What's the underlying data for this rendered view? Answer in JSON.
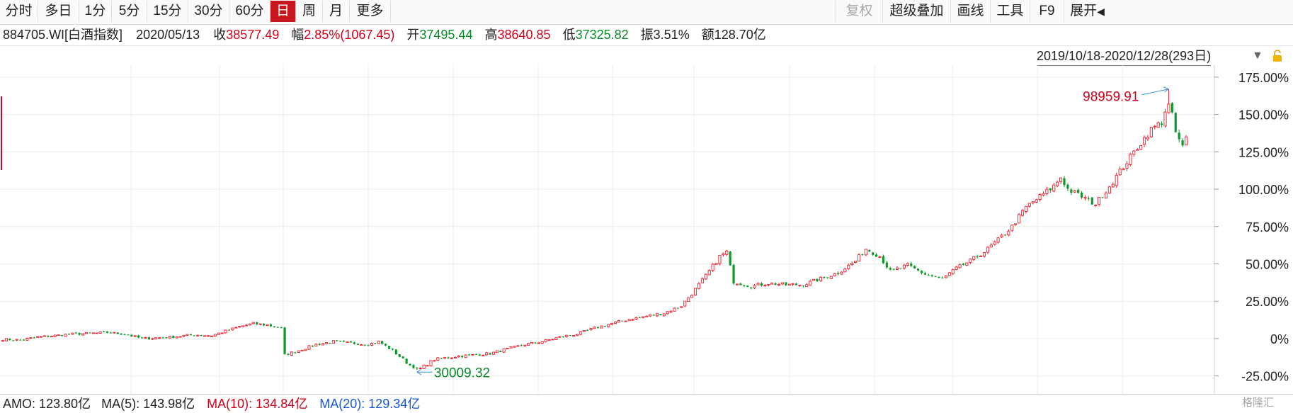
{
  "toolbar": {
    "tabs": [
      "分时",
      "多日",
      "1分",
      "5分",
      "15分",
      "30分",
      "60分",
      "日",
      "周",
      "月",
      "更多"
    ],
    "active_index": 7,
    "right": {
      "restore": "复权",
      "overlay": "超级叠加",
      "draw": "画线",
      "tools": "工具",
      "f9": "F9",
      "expand": "展开",
      "expand_arrow": "◀"
    }
  },
  "info": {
    "code": "884705.WI[白酒指数]",
    "date": "2020/05/13",
    "close_label": "收",
    "close": "38577.49",
    "change_label": "幅",
    "change": "2.85%(1067.45)",
    "open_label": "开",
    "open": "37495.44",
    "high_label": "高",
    "high": "38640.85",
    "low_label": "低",
    "low": "37325.82",
    "amplitude_label": "振",
    "amplitude": "3.51%",
    "amount_label": "额",
    "amount": "128.70亿"
  },
  "range": {
    "text": "2019/10/18-2020/12/28(293日)",
    "arrow": "▼"
  },
  "chart_data": {
    "type": "candlestick",
    "y_unit": "percent change",
    "yticks": [
      "175.00%",
      "150.00%",
      "125.00%",
      "100.00%",
      "75.00%",
      "50.00%",
      "25.00%",
      "0%",
      "-25.00%"
    ],
    "ylim": [
      -37,
      183
    ],
    "x_start": "2019/10/18",
    "x_end": "2020/12/28",
    "trading_days": 293,
    "max_annotation": "98959.91",
    "min_annotation": "30009.32",
    "grid": true,
    "colors": {
      "up": "#e8212e",
      "down": "#0b9a2b",
      "max_label": "#d0021b",
      "min_label": "#078a28",
      "arrow": "#3d8fd1"
    },
    "waypoints": [
      [
        0,
        -0.5
      ],
      [
        5,
        -1
      ],
      [
        10,
        1
      ],
      [
        20,
        3
      ],
      [
        30,
        4
      ],
      [
        35,
        3
      ],
      [
        40,
        0
      ],
      [
        48,
        1
      ],
      [
        55,
        2.5
      ],
      [
        60,
        2
      ],
      [
        64,
        5
      ],
      [
        68,
        8
      ],
      [
        72,
        10
      ],
      [
        76,
        9
      ],
      [
        80,
        7
      ],
      [
        81,
        -11
      ],
      [
        85,
        -8
      ],
      [
        90,
        -4
      ],
      [
        95,
        -2
      ],
      [
        100,
        -3
      ],
      [
        105,
        -4
      ],
      [
        108,
        -2
      ],
      [
        112,
        -8
      ],
      [
        117,
        -18
      ],
      [
        120,
        -20
      ],
      [
        124,
        -14
      ],
      [
        130,
        -12
      ],
      [
        135,
        -11
      ],
      [
        140,
        -10
      ],
      [
        145,
        -7
      ],
      [
        150,
        -4
      ],
      [
        155,
        -2
      ],
      [
        160,
        1
      ],
      [
        165,
        3
      ],
      [
        170,
        7
      ],
      [
        175,
        10
      ],
      [
        180,
        13
      ],
      [
        185,
        15
      ],
      [
        190,
        17
      ],
      [
        195,
        22
      ],
      [
        198,
        30
      ],
      [
        202,
        42
      ],
      [
        206,
        55
      ],
      [
        208,
        58
      ],
      [
        210,
        38
      ],
      [
        215,
        35
      ],
      [
        220,
        37
      ],
      [
        225,
        36
      ],
      [
        230,
        36
      ],
      [
        235,
        40
      ],
      [
        240,
        44
      ],
      [
        245,
        52
      ],
      [
        248,
        60
      ],
      [
        252,
        55
      ],
      [
        255,
        45
      ],
      [
        260,
        49
      ],
      [
        265,
        43
      ],
      [
        270,
        40
      ],
      [
        274,
        47
      ],
      [
        278,
        52
      ],
      [
        282,
        58
      ],
      [
        286,
        66
      ],
      [
        290,
        75
      ],
      [
        294,
        88
      ],
      [
        298,
        95
      ],
      [
        302,
        102
      ],
      [
        304,
        108
      ],
      [
        306,
        100
      ],
      [
        310,
        95
      ],
      [
        314,
        90
      ],
      [
        318,
        102
      ],
      [
        322,
        115
      ],
      [
        326,
        128
      ],
      [
        330,
        140
      ],
      [
        333,
        145
      ],
      [
        335,
        160
      ],
      [
        337,
        138
      ],
      [
        339,
        128
      ],
      [
        340,
        134
      ]
    ],
    "max_point": {
      "index": 335,
      "value": 167
    },
    "min_point": {
      "index": 119,
      "value": -21
    }
  },
  "footer": {
    "amo": "AMO: 123.80亿",
    "ma5": "MA(5): 143.98亿",
    "ma10": "MA(10): 134.84亿",
    "ma20": "MA(20): 129.34亿",
    "colors": {
      "amo": "#222222",
      "ma5": "#222222",
      "ma10": "#d0021b",
      "ma20": "#1a56d6"
    }
  },
  "watermark": "格隆汇"
}
